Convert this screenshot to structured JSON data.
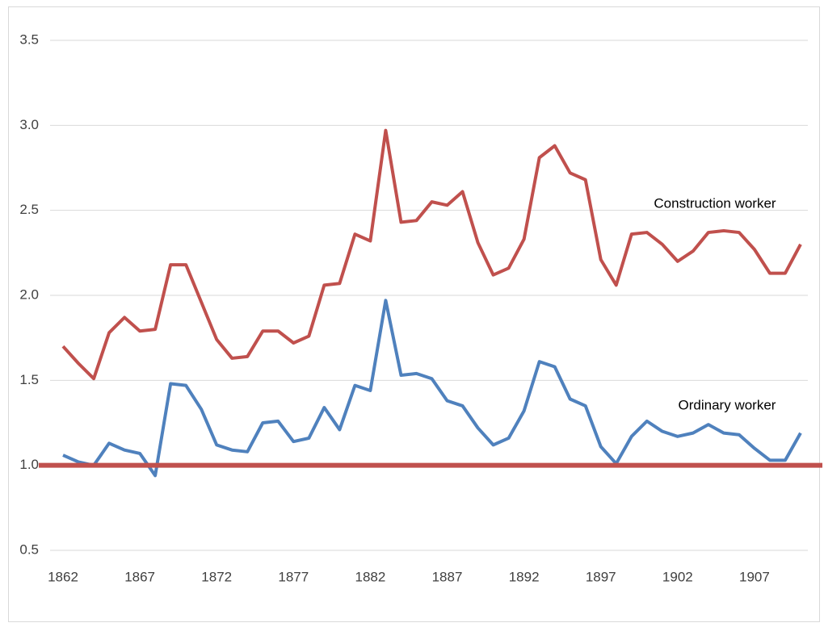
{
  "chart_data": {
    "type": "line",
    "x": [
      1862,
      1863,
      1864,
      1865,
      1866,
      1867,
      1868,
      1869,
      1870,
      1871,
      1872,
      1873,
      1874,
      1875,
      1876,
      1877,
      1878,
      1879,
      1880,
      1881,
      1882,
      1883,
      1884,
      1885,
      1886,
      1887,
      1888,
      1889,
      1890,
      1891,
      1892,
      1893,
      1894,
      1895,
      1896,
      1897,
      1898,
      1899,
      1900,
      1901,
      1902,
      1903,
      1904,
      1905,
      1906,
      1907,
      1908,
      1909,
      1910
    ],
    "series": [
      {
        "name": "Construction worker",
        "color": "#c0504d",
        "values": [
          1.7,
          1.6,
          1.51,
          1.78,
          1.87,
          1.79,
          1.8,
          2.18,
          2.18,
          1.96,
          1.74,
          1.63,
          1.64,
          1.79,
          1.79,
          1.72,
          1.76,
          2.06,
          2.07,
          2.36,
          2.32,
          2.97,
          2.43,
          2.44,
          2.55,
          2.53,
          2.61,
          2.31,
          2.12,
          2.16,
          2.33,
          2.81,
          2.88,
          2.72,
          2.68,
          2.21,
          2.06,
          2.36,
          2.37,
          2.3,
          2.2,
          2.26,
          2.37,
          2.38,
          2.37,
          2.27,
          2.13,
          2.13,
          2.3
        ]
      },
      {
        "name": "Ordinary worker",
        "color": "#4f81bd",
        "values": [
          1.06,
          1.02,
          1.0,
          1.13,
          1.09,
          1.07,
          0.94,
          1.48,
          1.47,
          1.33,
          1.12,
          1.09,
          1.08,
          1.25,
          1.26,
          1.14,
          1.16,
          1.34,
          1.21,
          1.47,
          1.44,
          1.97,
          1.53,
          1.54,
          1.51,
          1.38,
          1.35,
          1.22,
          1.12,
          1.16,
          1.32,
          1.61,
          1.58,
          1.39,
          1.35,
          1.11,
          1.01,
          1.17,
          1.26,
          1.2,
          1.17,
          1.19,
          1.24,
          1.19,
          1.18,
          1.1,
          1.03,
          1.03,
          1.19
        ]
      }
    ],
    "reference_line": {
      "value": 1,
      "color": "#c0504d"
    },
    "xlim": [
      1862,
      1910
    ],
    "xticks": [
      1862,
      1867,
      1872,
      1877,
      1882,
      1887,
      1892,
      1897,
      1902,
      1907
    ],
    "ylim": [
      0.5,
      3.5
    ],
    "yticks": [
      {
        "value": 0.5,
        "label": "0.5"
      },
      {
        "value": 1,
        "label": "1.0"
      },
      {
        "value": 1.5,
        "label": "1.5"
      },
      {
        "value": 2,
        "label": "2.0"
      },
      {
        "value": 2.5,
        "label": "2.5"
      },
      {
        "value": 3,
        "label": "3.0"
      },
      {
        "value": 3.5,
        "label": "3.5"
      }
    ],
    "grid": true
  }
}
